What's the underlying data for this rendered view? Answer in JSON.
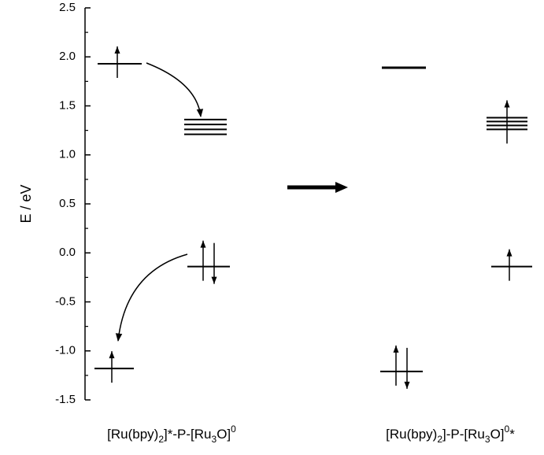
{
  "chart_data": {
    "type": "energy-levels",
    "ylabel": "E / eV",
    "ylim": [
      -1.5,
      2.5
    ],
    "yticks": [
      -1.5,
      {
        "value": -1,
        "label": "-1.0"
      },
      -0.5,
      {
        "value": 0,
        "label": "0.0"
      },
      0.5,
      {
        "value": 1,
        "label": "1.0"
      },
      1.5,
      {
        "value": 2,
        "label": "2.0"
      },
      2.5
    ],
    "categories": [
      [
        {
          "text": "[Ru(bpy)"
        },
        {
          "sub": "2"
        },
        {
          "text": "]*-P-[Ru"
        },
        {
          "sub": "3"
        },
        {
          "text": "O]"
        },
        {
          "sup": "0"
        }
      ],
      [
        {
          "text": "[Ru(bpy)"
        },
        {
          "sub": "2"
        },
        {
          "text": "]-P-[Ru"
        },
        {
          "sub": "3"
        },
        {
          "text": "O]"
        },
        {
          "sup": "0"
        },
        {
          "text": "*"
        }
      ]
    ],
    "levels": [
      {
        "energy": [
          1.93
        ],
        "electrons": 1
      },
      {
        "energy": [
          1.36,
          1.31,
          1.26,
          1.21
        ],
        "electrons": 0
      },
      {
        "energy": [
          -0.14
        ],
        "electrons": 2
      },
      {
        "energy": [
          -1.18
        ],
        "electrons": 1
      },
      {
        "energy": [
          1.89
        ],
        "electrons": 0
      },
      {
        "energy": [
          1.38,
          1.34,
          1.3,
          1.26
        ],
        "electrons": 1
      },
      {
        "energy": [
          -0.14
        ],
        "electrons": 1
      },
      {
        "energy": [
          -1.21
        ],
        "electrons": 2
      }
    ]
  }
}
